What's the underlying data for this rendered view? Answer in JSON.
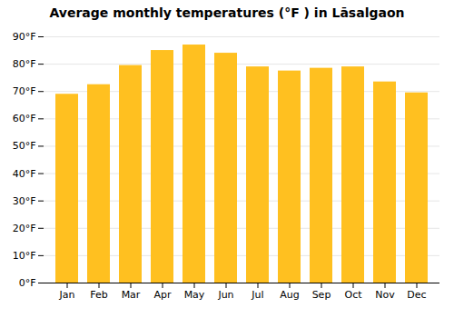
{
  "chart_data": {
    "type": "bar",
    "title": "Average monthly temperatures (°F ) in Lāsalgaon",
    "categories": [
      "Jan",
      "Feb",
      "Mar",
      "Apr",
      "May",
      "Jun",
      "Jul",
      "Aug",
      "Sep",
      "Oct",
      "Nov",
      "Dec"
    ],
    "values": [
      69,
      72.5,
      79.5,
      85,
      87,
      84,
      79,
      77.5,
      78.5,
      79,
      73.5,
      69.5
    ],
    "color": "#FFC020",
    "ylim": [
      0,
      90
    ],
    "yticks": [
      {
        "value": 0,
        "label": "0°F"
      },
      {
        "value": 10,
        "label": "10°F"
      },
      {
        "value": 20,
        "label": "20°F"
      },
      {
        "value": 30,
        "label": "30°F"
      },
      {
        "value": 40,
        "label": "40°F"
      },
      {
        "value": 50,
        "label": "50°F"
      },
      {
        "value": 60,
        "label": "60°F"
      },
      {
        "value": 70,
        "label": "70°F"
      },
      {
        "value": 80,
        "label": "80°F"
      },
      {
        "value": 90,
        "label": "90°F"
      }
    ],
    "grid": true
  }
}
